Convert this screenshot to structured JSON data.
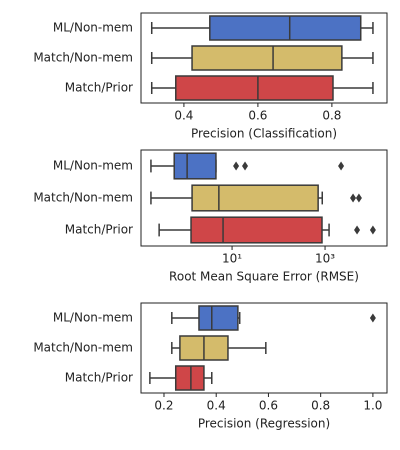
{
  "chart_data": [
    {
      "type": "box",
      "xlabel": "Precision (Classification)",
      "categories": [
        "ML/Non-mem",
        "Match/Non-mem",
        "Match/Prior"
      ],
      "colors": [
        "#4c72c4",
        "#d4bb6b",
        "#cf4648"
      ],
      "boxes": [
        {
          "min": 0.313,
          "q1": 0.47,
          "median": 0.686,
          "q3": 0.878,
          "max": 0.911,
          "outliers": []
        },
        {
          "min": 0.313,
          "q1": 0.422,
          "median": 0.641,
          "q3": 0.827,
          "max": 0.911,
          "outliers": []
        },
        {
          "min": 0.313,
          "q1": 0.378,
          "median": 0.6,
          "q3": 0.803,
          "max": 0.911,
          "outliers": []
        }
      ],
      "xlim": [
        0.284,
        0.949
      ],
      "xticks": [
        0.4,
        0.6,
        0.8
      ]
    },
    {
      "type": "box",
      "xlabel": "Root Mean Square Error (RMSE)",
      "categories": [
        "ML/Non-mem",
        "Match/Non-mem",
        "Match/Prior"
      ],
      "colors": [
        "#4c72c4",
        "#d4bb6b",
        "#cf4648"
      ],
      "xscale": "log",
      "boxes": [
        {
          "min": 0.18,
          "q1": 0.57,
          "median": 1.08,
          "q3": 4.5,
          "max": 4.5,
          "outliers": [
            12.2,
            19,
            2210
          ]
        },
        {
          "min": 0.18,
          "q1": 1.38,
          "median": 5.2,
          "q3": 710,
          "max": 870,
          "outliers": [
            4000,
            5350
          ]
        },
        {
          "min": 0.27,
          "q1": 1.31,
          "median": 6.4,
          "q3": 860,
          "max": 1220,
          "outliers": [
            4880,
            10700
          ]
        }
      ],
      "xlim": [
        0.11,
        21500
      ],
      "xticks": [
        {
          "value": 10,
          "label": "10¹"
        },
        {
          "value": 1000,
          "label": "10³"
        }
      ]
    },
    {
      "type": "box",
      "xlabel": "Precision (Regression)",
      "categories": [
        "ML/Non-mem",
        "Match/Non-mem",
        "Match/Prior"
      ],
      "colors": [
        "#4c72c4",
        "#d4bb6b",
        "#cf4648"
      ],
      "boxes": [
        {
          "min": 0.23,
          "q1": 0.334,
          "median": 0.383,
          "q3": 0.483,
          "max": 0.49,
          "outliers": [
            1.0
          ]
        },
        {
          "min": 0.23,
          "q1": 0.261,
          "median": 0.353,
          "q3": 0.445,
          "max": 0.59,
          "outliers": []
        },
        {
          "min": 0.146,
          "q1": 0.245,
          "median": 0.303,
          "q3": 0.353,
          "max": 0.383,
          "outliers": []
        }
      ],
      "xlim": [
        0.112,
        1.054
      ],
      "xticks": [
        0.2,
        0.4,
        0.6,
        {
          "value": 0.8,
          "label": "0.8"
        },
        {
          "value": 1.0,
          "label": "1.0"
        }
      ]
    }
  ]
}
